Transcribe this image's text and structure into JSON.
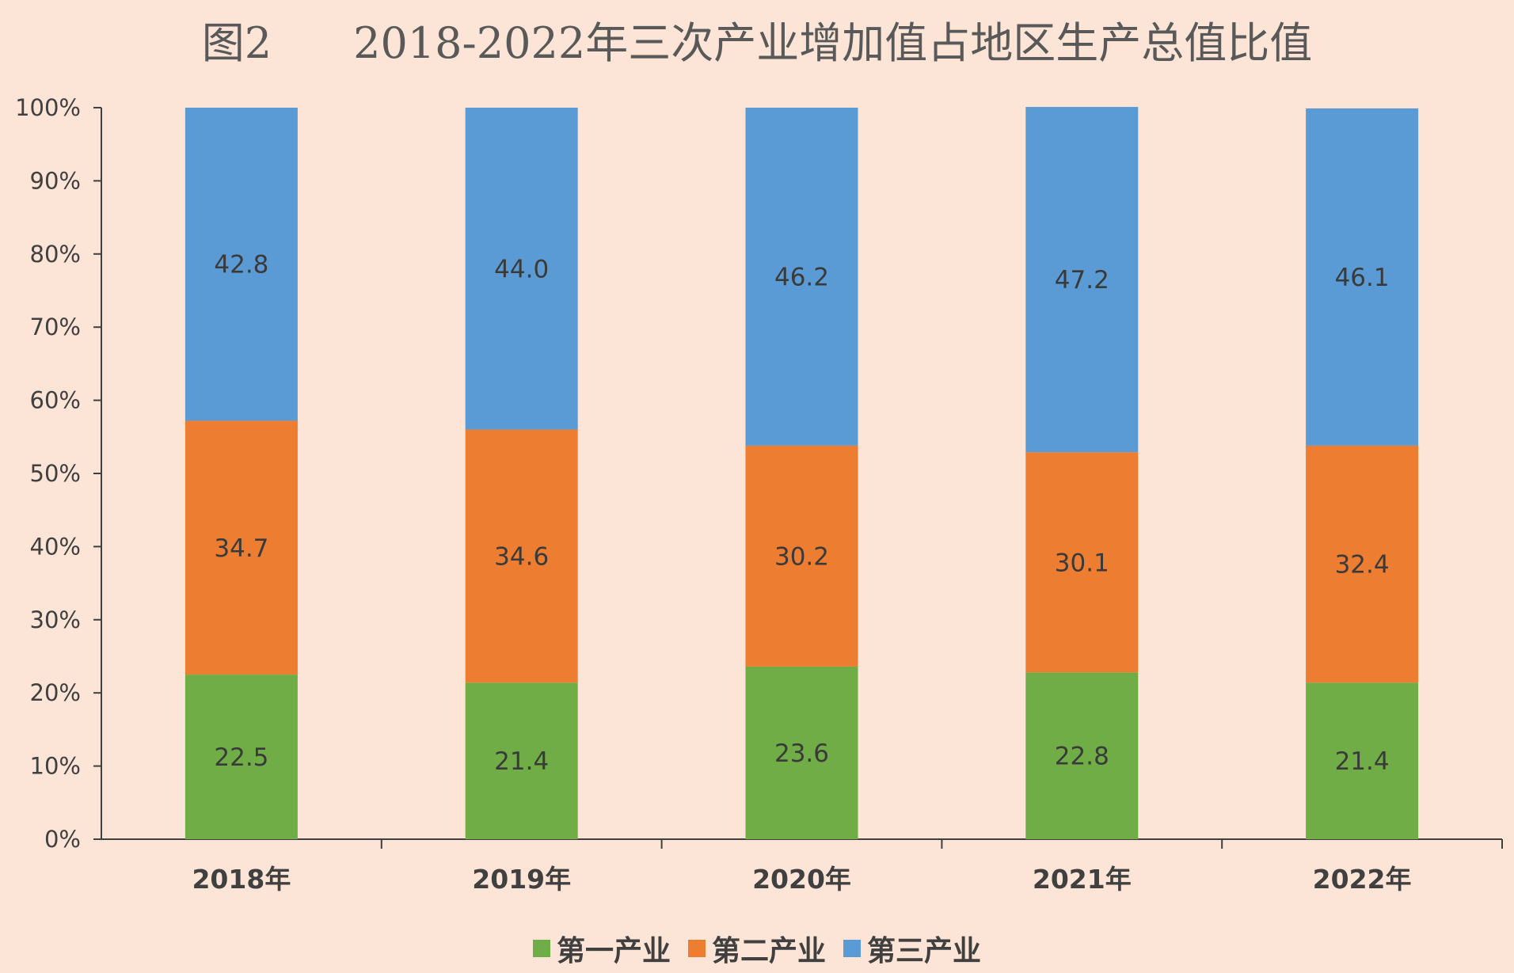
{
  "chart_data": {
    "type": "bar",
    "stacked": true,
    "title": "图2      2018-2022年三次产业增加值占地区生产总值比值",
    "categories": [
      "2018年",
      "2019年",
      "2020年",
      "2021年",
      "2022年"
    ],
    "y_ticks": [
      "0%",
      "10%",
      "20%",
      "30%",
      "40%",
      "50%",
      "60%",
      "70%",
      "80%",
      "90%",
      "100%"
    ],
    "ylim": [
      0,
      100
    ],
    "grid": false,
    "legend_position": "bottom",
    "series": [
      {
        "name": "第一产业",
        "color": "#70AD47",
        "values": [
          22.5,
          21.4,
          23.6,
          22.8,
          21.4
        ]
      },
      {
        "name": "第二产业",
        "color": "#ED7D31",
        "values": [
          34.7,
          34.6,
          30.2,
          30.1,
          32.4
        ]
      },
      {
        "name": "第三产业",
        "color": "#5B9BD5",
        "values": [
          42.8,
          44.0,
          46.2,
          47.2,
          46.1
        ]
      }
    ],
    "value_labels": [
      [
        "22.5",
        "21.4",
        "23.6",
        "22.8",
        "21.4"
      ],
      [
        "34.7",
        "34.6",
        "30.2",
        "30.1",
        "32.4"
      ],
      [
        "42.8",
        "44.0",
        "46.2",
        "47.2",
        "46.1"
      ]
    ]
  }
}
